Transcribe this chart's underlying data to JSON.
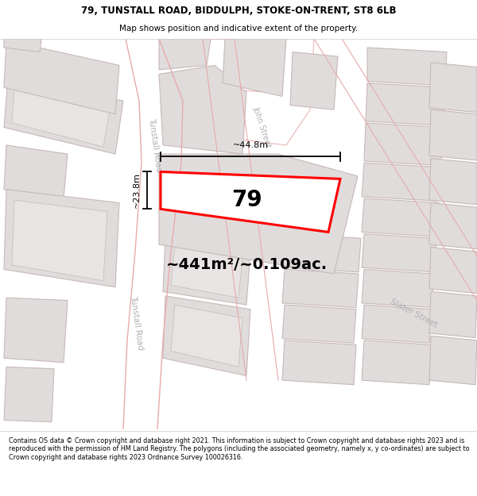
{
  "title_line1": "79, TUNSTALL ROAD, BIDDULPH, STOKE-ON-TRENT, ST8 6LB",
  "title_line2": "Map shows position and indicative extent of the property.",
  "footer_text": "Contains OS data © Crown copyright and database right 2021. This information is subject to Crown copyright and database rights 2023 and is reproduced with the permission of HM Land Registry. The polygons (including the associated geometry, namely x, y co-ordinates) are subject to Crown copyright and database rights 2023 Ordnance Survey 100026316.",
  "map_bg": "#f2efef",
  "building_fill": "#e0dcdc",
  "building_stroke": "#c8b8b8",
  "road_fill": "#ffffff",
  "road_edge": "#e8aaaa",
  "highlight_fill": "#ffffff",
  "highlight_stroke": "#ff0000",
  "road_label_color": "#b0b0b0",
  "area_text": "~441m²/~0.109ac.",
  "property_label": "79",
  "dim_width": "~44.8m",
  "dim_height": "~23.8m"
}
